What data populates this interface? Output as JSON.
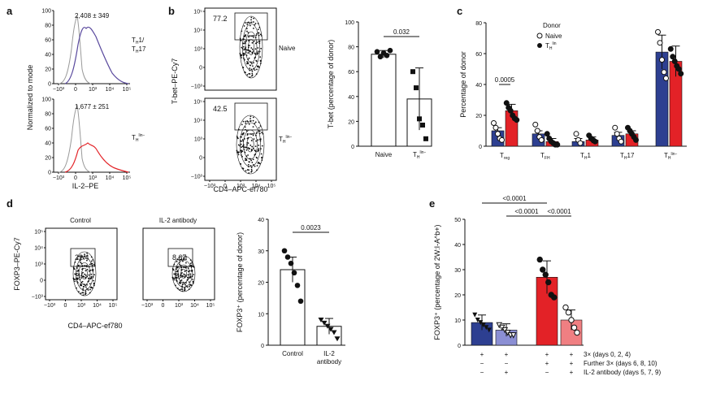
{
  "panels": {
    "a": "a",
    "b": "b",
    "c": "c",
    "d": "d",
    "e": "e"
  },
  "colors": {
    "navy": "#2d3f91",
    "red": "#e32227",
    "purple": "#5a4a9e",
    "lilac": "#8b8fd4",
    "grey": "#9a9a9a",
    "pink": "#f07f82"
  },
  "panel_a": {
    "ylabel": "Normalized to mode",
    "xlabel": "IL-2–PE",
    "x_ticks": [
      "−10³",
      "0",
      "10³",
      "10⁴",
      "10⁵"
    ],
    "y_ticks": [
      "0",
      "20",
      "40",
      "60",
      "80",
      "100"
    ],
    "top_stat": "2,408 ± 349",
    "bottom_stat": "1,677 ± 251",
    "top_label_line1": "T",
    "top_label_sub1": "H",
    "top_label_sup1": "1/",
    "top_label_line2": "T",
    "top_label_sub2": "H",
    "top_label_sup2": "17",
    "bottom_label_main": "T",
    "bottom_label_sub": "H",
    "bottom_label_sup": "lin−"
  },
  "panel_b": {
    "ylabel": "T-bet–PE-Cy7",
    "xlabel": "CD4–APC-ef780",
    "top_gate": "77.2",
    "bottom_gate": "42.5",
    "top_group": "Naive",
    "bottom_group_main": "T",
    "bottom_group_sub": "H",
    "bottom_group_sup": "lin−",
    "x_ticks": [
      "−10³",
      "0",
      "10³",
      "10⁴",
      "10⁵"
    ],
    "y_ticks": [
      "10⁵",
      "10⁴",
      "10³",
      "0",
      "−10³"
    ]
  },
  "chart_data": [
    {
      "type": "bar",
      "id": "b_bar",
      "ylabel": "T-bet (percentage of donor)",
      "categories": [
        "Naive",
        "T_H^lin−"
      ],
      "category_labels": [
        "Naive",
        "T"
      ],
      "values": [
        74,
        38
      ],
      "errors": [
        3,
        25
      ],
      "points": [
        [
          76,
          72,
          75,
          73,
          77
        ],
        [
          60,
          47,
          22,
          17,
          6
        ]
      ],
      "ylim": [
        0,
        100
      ],
      "yticks": [
        "0",
        "20",
        "40",
        "60",
        "80",
        "100"
      ],
      "p_value": "0.032"
    },
    {
      "type": "bar",
      "id": "c_bar",
      "ylabel": "Percentage of donor",
      "legend_title": "Donor",
      "series": [
        {
          "name": "Naive",
          "values": [
            10,
            8,
            3,
            7,
            61
          ],
          "points": [
            [
              15,
              12,
              8,
              5,
              4
            ],
            [
              14,
              10,
              6,
              4
            ],
            [
              8,
              4,
              2
            ],
            [
              12,
              8,
              5,
              3
            ],
            [
              74,
              67,
              56,
              48,
              44
            ]
          ]
        },
        {
          "name": "T_H^lin",
          "values": [
            23,
            3,
            4,
            8,
            55
          ],
          "points": [
            [
              28,
              25,
              23,
              20,
              18,
              17
            ],
            [
              8,
              5,
              3,
              2,
              1,
              1
            ],
            [
              7,
              5,
              4,
              3
            ],
            [
              12,
              10,
              8,
              6,
              4
            ],
            [
              63,
              58,
              55,
              52,
              50,
              47
            ]
          ]
        }
      ],
      "categories": [
        "T_reg",
        "T_FH",
        "T_H1",
        "T_H17",
        "T_H^lin−"
      ],
      "ylim": [
        0,
        80
      ],
      "yticks": [
        "0",
        "20",
        "40",
        "60",
        "80"
      ],
      "p_value": "0.0005"
    },
    {
      "type": "bar",
      "id": "d_bar",
      "ylabel": "FOXP3⁺ (percentage of donor)",
      "categories": [
        "Control",
        "IL-2 antibody"
      ],
      "category_line1": [
        "Control",
        "IL-2"
      ],
      "category_line2": [
        "",
        "antibody"
      ],
      "values": [
        24,
        6
      ],
      "errors": [
        4,
        2.5
      ],
      "points": [
        [
          30,
          28,
          26,
          23,
          19,
          14
        ],
        [
          8,
          7,
          6,
          5,
          4,
          2
        ]
      ],
      "ylim": [
        0,
        40
      ],
      "yticks": [
        "0",
        "10",
        "20",
        "30",
        "40"
      ],
      "p_value": "0.0023"
    },
    {
      "type": "bar",
      "id": "e_bar",
      "ylabel": "FOXP3⁺ (percentage of 2W:I-A^b+)",
      "values": [
        9,
        6,
        27,
        10
      ],
      "errors": [
        3,
        2.5,
        6.5,
        4
      ],
      "points": [
        [
          12,
          10,
          9,
          8,
          7,
          6
        ],
        [
          8,
          7,
          6,
          5,
          4,
          4
        ],
        [
          34,
          30,
          28,
          25,
          20,
          19
        ],
        [
          15,
          13,
          10,
          7,
          5
        ]
      ],
      "ylim": [
        0,
        50
      ],
      "yticks": [
        "0",
        "10",
        "20",
        "30",
        "40",
        "50"
      ],
      "p_values": [
        "<0.0001",
        "<0.0001",
        "<0.0001"
      ],
      "conditions": [
        {
          "label": "3× (days 0, 2, 4)",
          "signs": [
            "+",
            "+",
            "+",
            "+"
          ]
        },
        {
          "label": "Further 3× (days 6, 8, 10)",
          "signs": [
            "−",
            "−",
            "+",
            "+"
          ]
        },
        {
          "label": "IL-2 antibody (days 5, 7, 9)",
          "signs": [
            "−",
            "+",
            "−",
            "+"
          ]
        }
      ]
    }
  ],
  "panel_c_text": {
    "legend_naive": "Naive",
    "legend_th": "T",
    "legend_th_sub": "H",
    "legend_th_sup": "lin",
    "cat_main": [
      "T",
      "T",
      "T",
      "T",
      "T"
    ],
    "cat_sub": [
      "reg",
      "FH",
      "H",
      "H",
      "H"
    ],
    "cat_tail": [
      "",
      "",
      "1",
      "17",
      ""
    ],
    "cat_sup": [
      "",
      "",
      "",
      "",
      "lin−"
    ]
  },
  "panel_d": {
    "left_title": "Control",
    "right_title": "IL-2 antibody",
    "left_gate": "22.4",
    "right_gate": "8.67",
    "ylabel": "FOXP3–PE-Cy7",
    "xlabel": "CD4–APC-ef780",
    "y_ticks": [
      "10⁵",
      "10⁴",
      "10³",
      "0",
      "−10³"
    ],
    "x_ticks": [
      "−10³",
      "0",
      "10³",
      "10⁴",
      "10⁵"
    ]
  }
}
